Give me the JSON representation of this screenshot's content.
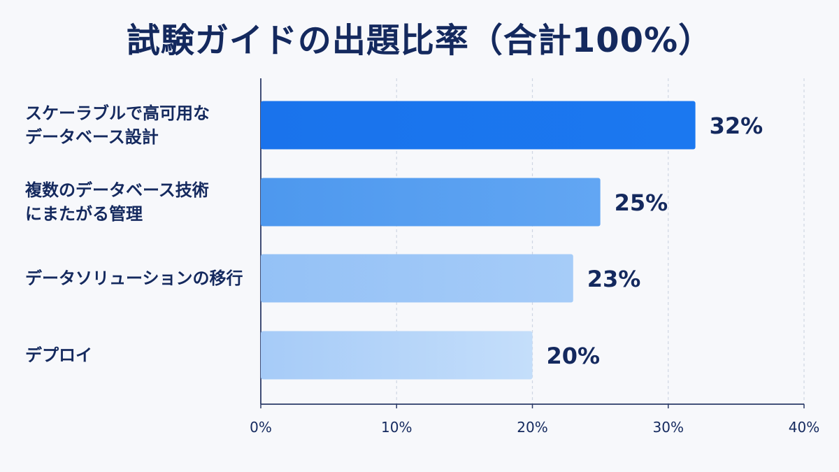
{
  "chart_data": {
    "type": "bar",
    "orientation": "horizontal",
    "title": "試験ガイドの出題比率（合計100%）",
    "categories": [
      [
        "スケーラブルで高可用な",
        "データベース設計"
      ],
      [
        "複数のデータベース技術",
        "にまたがる管理"
      ],
      [
        "データソリューションの移行"
      ],
      [
        "デプロイ"
      ]
    ],
    "values": [
      32,
      25,
      23,
      20
    ],
    "value_labels": [
      "32%",
      "25%",
      "23%",
      "20%"
    ],
    "xlim": [
      0,
      40
    ],
    "x_ticks": [
      0,
      10,
      20,
      30,
      40
    ],
    "x_tick_labels": [
      "0%",
      "10%",
      "20%",
      "30%",
      "40%"
    ],
    "grid": true,
    "bar_colors": [
      [
        "#1a73ec",
        "#1b78f0"
      ],
      [
        "#4d98ee",
        "#62a6f3"
      ],
      [
        "#94c1f6",
        "#a6ccf8"
      ],
      [
        "#a6cbf8",
        "#c4defa"
      ]
    ]
  },
  "colors": {
    "text": "#14295e",
    "axis": "#2b3a67",
    "grid": "#cfd6e3",
    "background": "#f7f8fb"
  }
}
